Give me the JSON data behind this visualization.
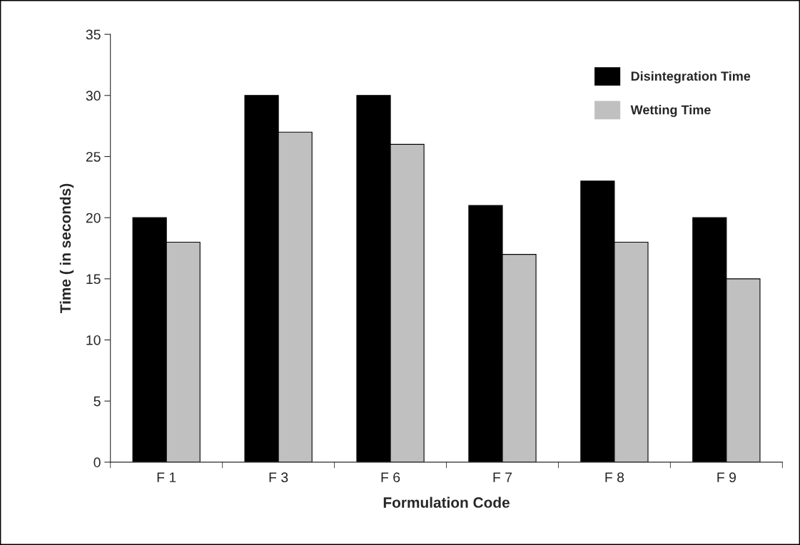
{
  "chart_data": {
    "type": "bar",
    "xlabel": "Formulation Code",
    "ylabel": "Time ( in seconds)",
    "categories": [
      "F 1",
      "F 3",
      "F 6",
      "F 7",
      "F 8",
      "F 9"
    ],
    "series": [
      {
        "name": "Disintegration Time",
        "color": "#000000",
        "values": [
          20,
          30,
          30,
          21,
          23,
          20
        ]
      },
      {
        "name": "Wetting Time",
        "color": "#c0c0c0",
        "values": [
          18,
          27,
          26,
          17,
          18,
          15
        ]
      }
    ],
    "ylim": [
      0,
      35
    ],
    "yticks": [
      0,
      5,
      10,
      15,
      20,
      25,
      30,
      35
    ],
    "grid": false,
    "legend": "top right"
  }
}
